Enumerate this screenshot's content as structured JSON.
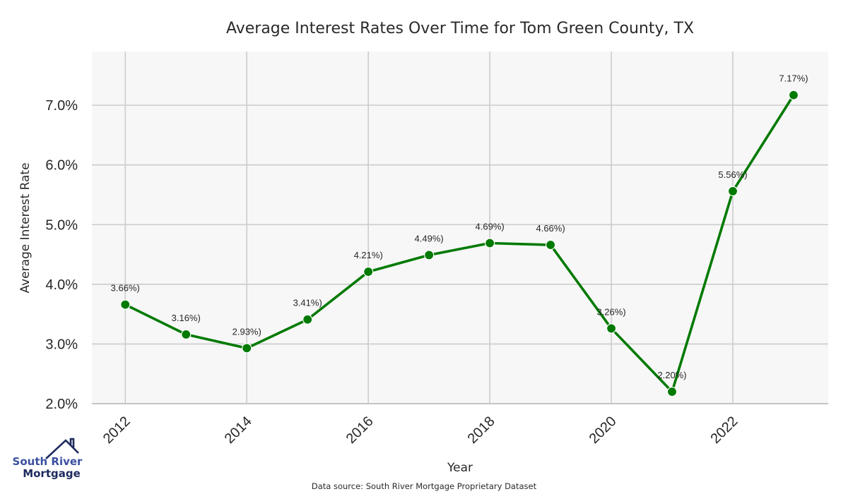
{
  "chart_data": {
    "type": "line",
    "title": "Average Interest Rates Over Time for Tom Green County, TX",
    "xlabel": "Year",
    "ylabel": "Average Interest Rate",
    "x": [
      2012,
      2013,
      2014,
      2015,
      2016,
      2017,
      2018,
      2019,
      2020,
      2021,
      2022,
      2023
    ],
    "series": [
      {
        "name": "Average Interest Rate",
        "values": [
          3.66,
          3.16,
          2.93,
          3.41,
          4.21,
          4.49,
          4.69,
          4.66,
          3.26,
          2.2,
          5.56,
          7.17
        ],
        "labels": [
          "3.66%)",
          "3.16%)",
          "2.93%)",
          "3.41%)",
          "4.21%)",
          "4.49%)",
          "4.69%)",
          "4.66%)",
          "3.26%)",
          "2.20%)",
          "5.56%)",
          "7.17%)"
        ],
        "color": "#007a00"
      }
    ],
    "xticks": [
      2012,
      2014,
      2016,
      2018,
      2020,
      2022
    ],
    "xtick_labels": [
      "2012",
      "2014",
      "2016",
      "2018",
      "2020",
      "2022"
    ],
    "yticks": [
      2,
      3,
      4,
      5,
      6,
      7
    ],
    "ytick_labels": [
      "2.0%",
      "3.0%",
      "4.0%",
      "5.0%",
      "6.0%",
      "7.0%"
    ],
    "xlim": [
      2011.45,
      2023.57
    ],
    "ylim": [
      2.0,
      7.9
    ],
    "grid": true,
    "legend": "none",
    "plot_background": "#f7f7f7",
    "grid_color": "#cccccc"
  },
  "footer": {
    "source": "Data source: South River Mortgage Proprietary Dataset"
  },
  "logo": {
    "line1": "South River",
    "line2": "Mortgage",
    "icon": "house-roof-icon",
    "color_primary": "#3a4fa0",
    "color_dark": "#1e2a5e"
  }
}
